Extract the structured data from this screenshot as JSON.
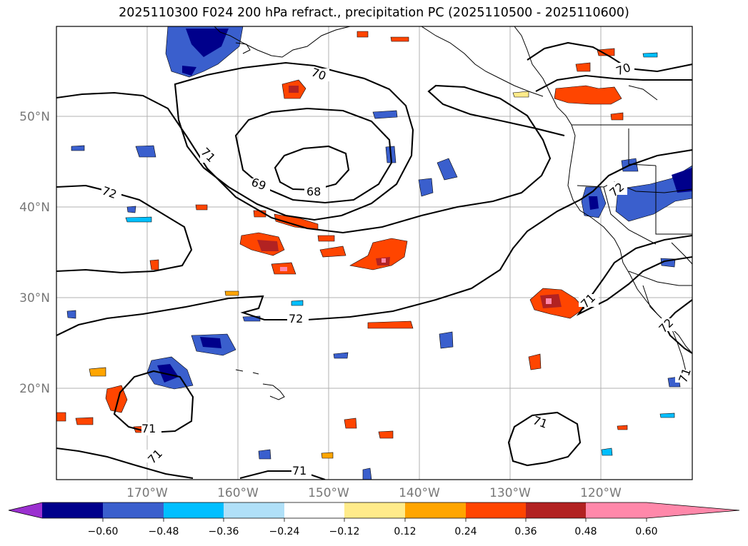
{
  "title": "2025110300 F024 200 hPa refract., precipitation PC (2025110500 - 2025110600)",
  "map": {
    "lat_labels": [
      "50°N",
      "40°N",
      "30°N",
      "20°N"
    ],
    "lon_labels": [
      "170°W",
      "160°W",
      "150°W",
      "140°W",
      "130°W",
      "120°W"
    ],
    "contour_labels": [
      "70",
      "70",
      "71",
      "69",
      "68",
      "72",
      "72",
      "71",
      "72",
      "71",
      "71",
      "71",
      "71",
      "72",
      "71"
    ]
  },
  "colorbar": {
    "ticks": [
      "−0.60",
      "−0.48",
      "−0.36",
      "−0.24",
      "−0.12",
      "0.12",
      "0.24",
      "0.36",
      "0.48",
      "0.60"
    ],
    "colors": [
      "#9b30d0",
      "#00008b",
      "#3a5fcd",
      "#00bfff",
      "#b0e0f8",
      "#ffffff",
      "#ffeb8a",
      "#ffa500",
      "#ff4500",
      "#b22222",
      "#ff88aa"
    ]
  }
}
